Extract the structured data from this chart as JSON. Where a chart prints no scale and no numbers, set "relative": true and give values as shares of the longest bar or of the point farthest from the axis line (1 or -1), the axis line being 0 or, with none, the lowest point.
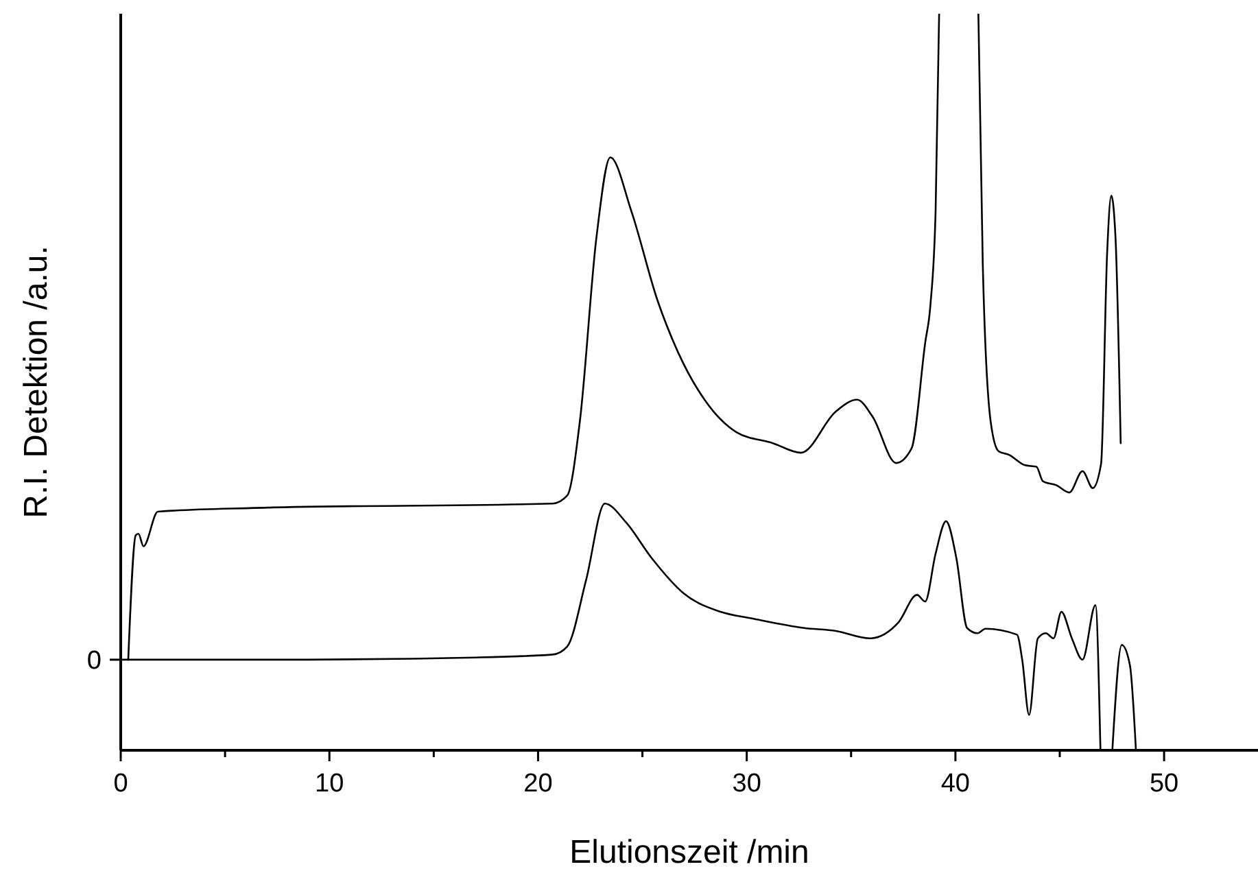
{
  "chart_data": {
    "type": "line",
    "xlabel": "Elutionszeit /min",
    "ylabel": "R.I. Detektion /a.u.",
    "relative": true,
    "xlim": [
      0,
      54.5
    ],
    "xticks": [
      0,
      {
        "value": 5,
        "label": null
      },
      10,
      {
        "value": 15,
        "label": null
      },
      20,
      {
        "value": 25,
        "label": null
      },
      30,
      {
        "value": 35,
        "label": null
      },
      40,
      {
        "value": 45,
        "label": null
      },
      50
    ],
    "annotations": [
      "0"
    ],
    "series": [
      {
        "color": "#000000",
        "x": [
          0.36,
          0.72,
          0.85,
          1.09,
          1.78,
          6.4,
          20.7,
          21.4,
          22.0,
          22.8,
          23.46,
          24.47,
          25.72,
          26.73,
          28.0,
          29.5,
          31.25,
          32.6,
          34.27,
          35.28,
          36.03,
          37.16,
          37.9,
          38.55,
          38.8,
          39.05,
          39.22,
          40.2,
          41.1,
          41.31,
          41.69,
          42.07,
          42.58,
          43.33,
          43.88,
          44.2,
          44.83,
          45.46,
          46.09,
          46.58,
          46.98,
          47.27,
          47.47,
          47.67,
          47.92
        ],
        "values": [
          0.123,
          0.292,
          0.294,
          0.277,
          0.324,
          0.329,
          0.335,
          0.346,
          0.446,
          0.697,
          0.805,
          0.732,
          0.611,
          0.539,
          0.475,
          0.432,
          0.417,
          0.404,
          0.46,
          0.476,
          0.453,
          0.39,
          0.41,
          0.553,
          0.604,
          0.732,
          1.0,
          null,
          1.0,
          0.661,
          0.446,
          0.406,
          0.401,
          0.387,
          0.385,
          0.365,
          0.36,
          0.35,
          0.379,
          0.356,
          0.389,
          0.675,
          0.753,
          0.697,
          0.417
        ]
      },
      {
        "color": "#000000",
        "x": [
          0,
          6.8,
          17,
          20.7,
          21.4,
          22.3,
          23.2,
          24.2,
          25.47,
          26.98,
          28.74,
          30.25,
          32.77,
          34.27,
          35.9,
          37.28,
          38.16,
          38.55,
          39.05,
          39.55,
          40.05,
          40.56,
          41.06,
          41.44,
          42.95,
          43.2,
          43.53,
          43.95,
          44.33,
          44.7,
          45.08,
          45.58,
          46.09,
          46.71,
          46.95,
          47.2,
          47.52,
          47.97,
          48.36,
          48.65
        ],
        "values": [
          0.123,
          0.123,
          0.126,
          0.13,
          0.141,
          0.231,
          0.335,
          0.31,
          0.26,
          0.213,
          0.188,
          0.179,
          0.166,
          0.162,
          0.152,
          0.174,
          0.211,
          0.202,
          0.267,
          0.311,
          0.26,
          0.166,
          0.159,
          0.165,
          0.157,
          0.123,
          0.048,
          0.152,
          0.159,
          0.152,
          0.188,
          0.152,
          0.123,
          0.197,
          0,
          null,
          0,
          0.143,
          0.116,
          0
        ]
      }
    ]
  }
}
